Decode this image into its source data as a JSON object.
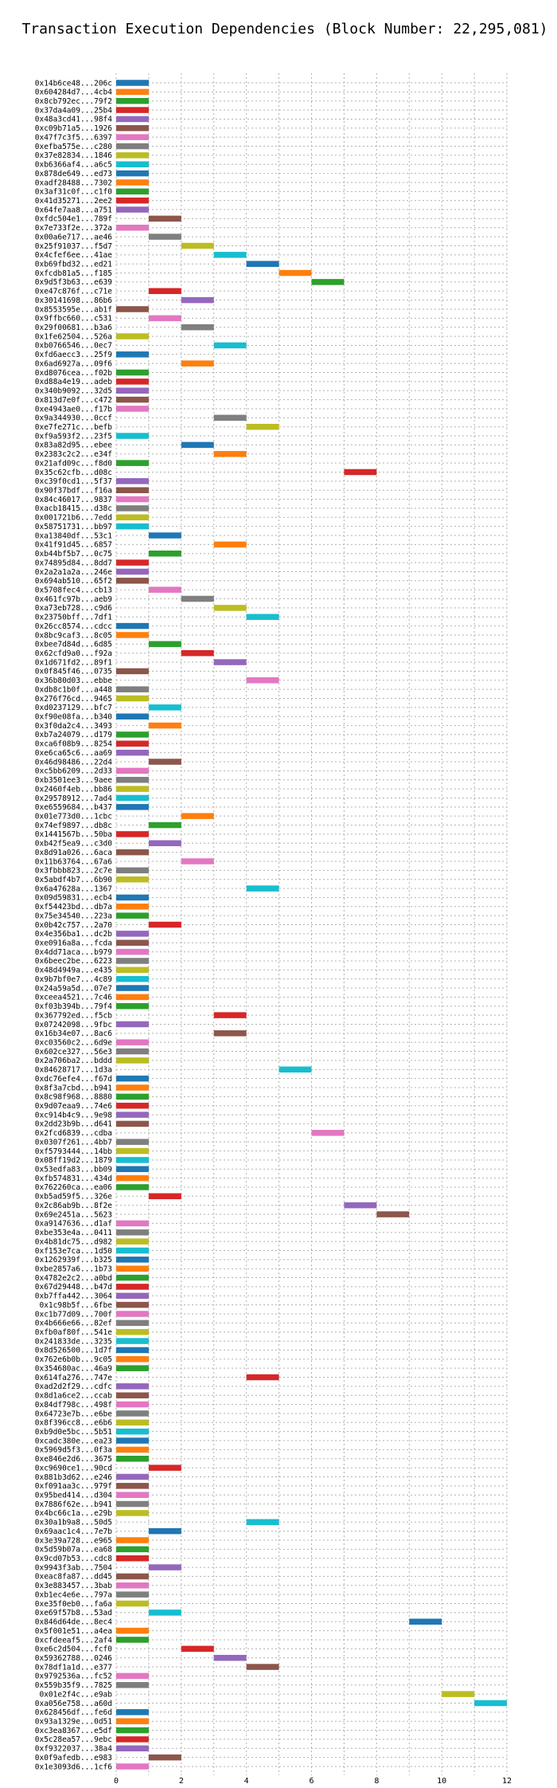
{
  "chart_data": {
    "type": "gantt",
    "title": "Transaction Execution Dependencies (Block Number: 22,295,081)",
    "xlabel": "",
    "ylabel": "",
    "xlim": [
      0,
      12
    ],
    "xticks": [
      0,
      2,
      4,
      6,
      8,
      10,
      12
    ],
    "grid": true,
    "colors": [
      "#1f77b4",
      "#ff7f0e",
      "#2ca02c",
      "#d62728",
      "#9467bd",
      "#8c564b",
      "#e377c2",
      "#7f7f7f",
      "#bcbd22",
      "#17becf"
    ],
    "rows": [
      {
        "label": "0x14b6ce48...206c",
        "start": 0,
        "end": 1
      },
      {
        "label": "0x604284d7...4cb4",
        "start": 0,
        "end": 1
      },
      {
        "label": "0x8cb792ec...79f2",
        "start": 0,
        "end": 1
      },
      {
        "label": "0x37da4a09...25b4",
        "start": 0,
        "end": 1
      },
      {
        "label": "0x48a3cd41...98f4",
        "start": 0,
        "end": 1
      },
      {
        "label": "0xc09b71a5...1926",
        "start": 0,
        "end": 1
      },
      {
        "label": "0x47f7c3f5...6397",
        "start": 0,
        "end": 1
      },
      {
        "label": "0xefba575e...c280",
        "start": 0,
        "end": 1
      },
      {
        "label": "0x37e82834...1846",
        "start": 0,
        "end": 1
      },
      {
        "label": "0xb6366af4...a6c5",
        "start": 0,
        "end": 1
      },
      {
        "label": "0x878de649...ed73",
        "start": 0,
        "end": 1
      },
      {
        "label": "0xadf28488...7302",
        "start": 0,
        "end": 1
      },
      {
        "label": "0x3af31c0f...c1f0",
        "start": 0,
        "end": 1
      },
      {
        "label": "0x41d35271...2ee2",
        "start": 0,
        "end": 1
      },
      {
        "label": "0x64fe7aa8...a751",
        "start": 0,
        "end": 1
      },
      {
        "label": "0xfdc504e1...789f",
        "start": 1,
        "end": 2
      },
      {
        "label": "0x7e733f2e...372a",
        "start": 0,
        "end": 1
      },
      {
        "label": "0x00a6e717...ae46",
        "start": 1,
        "end": 2
      },
      {
        "label": "0x25f91037...f5d7",
        "start": 2,
        "end": 3
      },
      {
        "label": "0x4cfef6ee...41ae",
        "start": 3,
        "end": 4
      },
      {
        "label": "0xb69fbd32...ed21",
        "start": 4,
        "end": 5
      },
      {
        "label": "0xfcdb81a5...f185",
        "start": 5,
        "end": 6
      },
      {
        "label": "0x9d5f3b63...e639",
        "start": 6,
        "end": 7
      },
      {
        "label": "0xe47c876f...c71e",
        "start": 1,
        "end": 2
      },
      {
        "label": "0x30141698...86b6",
        "start": 2,
        "end": 3
      },
      {
        "label": "0x8553595e...ab1f",
        "start": 0,
        "end": 1
      },
      {
        "label": "0x9ffbc660...c531",
        "start": 1,
        "end": 2
      },
      {
        "label": "0x29f00681...b3a6",
        "start": 2,
        "end": 3
      },
      {
        "label": "0x1fe62504...526a",
        "start": 0,
        "end": 1
      },
      {
        "label": "0xb0766546...0ec7",
        "start": 3,
        "end": 4
      },
      {
        "label": "0xfd6aecc3...25f9",
        "start": 0,
        "end": 1
      },
      {
        "label": "0x6ad6927a...09f6",
        "start": 2,
        "end": 3
      },
      {
        "label": "0xd8076cea...f02b",
        "start": 0,
        "end": 1
      },
      {
        "label": "0xd88a4e19...adeb",
        "start": 0,
        "end": 1
      },
      {
        "label": "0x340b9092...32d5",
        "start": 0,
        "end": 1
      },
      {
        "label": "0x813d7e0f...c472",
        "start": 0,
        "end": 1
      },
      {
        "label": "0xe4943ae0...f17b",
        "start": 0,
        "end": 1
      },
      {
        "label": "0x9a344930...0ccf",
        "start": 3,
        "end": 4
      },
      {
        "label": "0xe7fe271c...befb",
        "start": 4,
        "end": 5
      },
      {
        "label": "0xf9a593f2...23f5",
        "start": 0,
        "end": 1
      },
      {
        "label": "0x83a82d95...ebee",
        "start": 2,
        "end": 3
      },
      {
        "label": "0x2383c2c2...e34f",
        "start": 3,
        "end": 4
      },
      {
        "label": "0x21afd09c...f8d0",
        "start": 0,
        "end": 1
      },
      {
        "label": "0x35c62cfb...d08c",
        "start": 7,
        "end": 8
      },
      {
        "label": "0xc39f0cd1...5f37",
        "start": 0,
        "end": 1
      },
      {
        "label": "0x90f37bdf...f16a",
        "start": 0,
        "end": 1
      },
      {
        "label": "0x84c46017...9837",
        "start": 0,
        "end": 1
      },
      {
        "label": "0xacb18415...d38c",
        "start": 0,
        "end": 1
      },
      {
        "label": "0x001721b6...7edd",
        "start": 0,
        "end": 1
      },
      {
        "label": "0x58751731...bb97",
        "start": 0,
        "end": 1
      },
      {
        "label": "0xa13840df...53c1",
        "start": 1,
        "end": 2
      },
      {
        "label": "0x41f91d45...6857",
        "start": 3,
        "end": 4
      },
      {
        "label": "0xb44bf5b7...0c75",
        "start": 1,
        "end": 2
      },
      {
        "label": "0x74895d84...8dd7",
        "start": 0,
        "end": 1
      },
      {
        "label": "0x2a2a1a2a...246e",
        "start": 0,
        "end": 1
      },
      {
        "label": "0x694ab510...65f2",
        "start": 0,
        "end": 1
      },
      {
        "label": "0x5708fec4...cb13",
        "start": 1,
        "end": 2
      },
      {
        "label": "0x461fc97b...aeb9",
        "start": 2,
        "end": 3
      },
      {
        "label": "0xa73eb728...c9d6",
        "start": 3,
        "end": 4
      },
      {
        "label": "0x23750bff...7df1",
        "start": 4,
        "end": 5
      },
      {
        "label": "0x26cc8574...cdcc",
        "start": 0,
        "end": 1
      },
      {
        "label": "0x8bc9caf3...8c05",
        "start": 0,
        "end": 1
      },
      {
        "label": "0xbee7d84d...6d85",
        "start": 1,
        "end": 2
      },
      {
        "label": "0x62cfd9a0...f92a",
        "start": 2,
        "end": 3
      },
      {
        "label": "0x1d671fd2...89f1",
        "start": 3,
        "end": 4
      },
      {
        "label": "0x0f845f46...0735",
        "start": 0,
        "end": 1
      },
      {
        "label": "0x36b80d03...ebbe",
        "start": 4,
        "end": 5
      },
      {
        "label": "0xdb8c1b0f...a448",
        "start": 0,
        "end": 1
      },
      {
        "label": "0x276f76cd...9465",
        "start": 0,
        "end": 1
      },
      {
        "label": "0xd0237129...bfc7",
        "start": 1,
        "end": 2
      },
      {
        "label": "0xf90e08fa...b340",
        "start": 0,
        "end": 1
      },
      {
        "label": "0x3f0da2c4...3493",
        "start": 1,
        "end": 2
      },
      {
        "label": "0xb7a24079...d179",
        "start": 0,
        "end": 1
      },
      {
        "label": "0xca6f08b9...8254",
        "start": 0,
        "end": 1
      },
      {
        "label": "0xe6ca65c6...aa69",
        "start": 0,
        "end": 1
      },
      {
        "label": "0x46d98486...22d4",
        "start": 1,
        "end": 2
      },
      {
        "label": "0xc5bb6209...2d33",
        "start": 0,
        "end": 1
      },
      {
        "label": "0xb3501ee3...9aee",
        "start": 0,
        "end": 1
      },
      {
        "label": "0x2460f4eb...bb86",
        "start": 0,
        "end": 1
      },
      {
        "label": "0x29578912...7ad4",
        "start": 0,
        "end": 1
      },
      {
        "label": "0xe6559684...b437",
        "start": 0,
        "end": 1
      },
      {
        "label": "0x01e773d0...1cbc",
        "start": 2,
        "end": 3
      },
      {
        "label": "0x74ef9897...db8c",
        "start": 1,
        "end": 2
      },
      {
        "label": "0x1441567b...50ba",
        "start": 0,
        "end": 1
      },
      {
        "label": "0xb42f5ea9...c3d0",
        "start": 1,
        "end": 2
      },
      {
        "label": "0x8d91a026...6aca",
        "start": 0,
        "end": 1
      },
      {
        "label": "0x11b63764...67a6",
        "start": 2,
        "end": 3
      },
      {
        "label": "0x3fbbb823...2c7e",
        "start": 0,
        "end": 1
      },
      {
        "label": "0x5abdf4b7...6b90",
        "start": 0,
        "end": 1
      },
      {
        "label": "0x6a47628a...1367",
        "start": 4,
        "end": 5
      },
      {
        "label": "0x09d59831...ecb4",
        "start": 0,
        "end": 1
      },
      {
        "label": "0xf54423bd...db7a",
        "start": 0,
        "end": 1
      },
      {
        "label": "0x75e34540...223a",
        "start": 0,
        "end": 1
      },
      {
        "label": "0x0b42c757...2a70",
        "start": 1,
        "end": 2
      },
      {
        "label": "0x4e356ba1...dc2b",
        "start": 0,
        "end": 1
      },
      {
        "label": "0xe0916a8a...fcda",
        "start": 0,
        "end": 1
      },
      {
        "label": "0x4dd71aca...b979",
        "start": 0,
        "end": 1
      },
      {
        "label": "0x6beec2be...6223",
        "start": 0,
        "end": 1
      },
      {
        "label": "0x48d4949a...e435",
        "start": 0,
        "end": 1
      },
      {
        "label": "0x9b7bf0e7...4c89",
        "start": 0,
        "end": 1
      },
      {
        "label": "0x24a59a5d...07e7",
        "start": 0,
        "end": 1
      },
      {
        "label": "0xceea4521...7c46",
        "start": 0,
        "end": 1
      },
      {
        "label": "0xf03b394b...79f4",
        "start": 0,
        "end": 1
      },
      {
        "label": "0x367792ed...f5cb",
        "start": 3,
        "end": 4
      },
      {
        "label": "0x07242098...9fbc",
        "start": 0,
        "end": 1
      },
      {
        "label": "0x16b34e07...8ac6",
        "start": 3,
        "end": 4
      },
      {
        "label": "0xc03560c2...6d9e",
        "start": 0,
        "end": 1
      },
      {
        "label": "0x602ce327...56e3",
        "start": 0,
        "end": 1
      },
      {
        "label": "0x2a706ba2...bddd",
        "start": 0,
        "end": 1
      },
      {
        "label": "0x84628717...1d3a",
        "start": 5,
        "end": 6
      },
      {
        "label": "0xdc76efe4...f67d",
        "start": 0,
        "end": 1
      },
      {
        "label": "0x8f3a7cbd...b941",
        "start": 0,
        "end": 1
      },
      {
        "label": "0x8c98f968...8880",
        "start": 0,
        "end": 1
      },
      {
        "label": "0x9d07eaa9...74e6",
        "start": 0,
        "end": 1
      },
      {
        "label": "0xc914b4c9...9e98",
        "start": 0,
        "end": 1
      },
      {
        "label": "0x2dd23b9b...d641",
        "start": 0,
        "end": 1
      },
      {
        "label": "0x2fcd6839...cdba",
        "start": 6,
        "end": 7
      },
      {
        "label": "0x0307f261...4bb7",
        "start": 0,
        "end": 1
      },
      {
        "label": "0xf5793444...14bb",
        "start": 0,
        "end": 1
      },
      {
        "label": "0x08ff19d2...1879",
        "start": 0,
        "end": 1
      },
      {
        "label": "0x53edfa83...bb09",
        "start": 0,
        "end": 1
      },
      {
        "label": "0xfb574831...434d",
        "start": 0,
        "end": 1
      },
      {
        "label": "0x762260ca...ea06",
        "start": 0,
        "end": 1
      },
      {
        "label": "0xb5ad59f5...326e",
        "start": 1,
        "end": 2
      },
      {
        "label": "0x2c86ab9b...8f2e",
        "start": 7,
        "end": 8
      },
      {
        "label": "0x69e2451a...5623",
        "start": 8,
        "end": 9
      },
      {
        "label": "0xa9147636...d1af",
        "start": 0,
        "end": 1
      },
      {
        "label": "0xbe353e4a...0411",
        "start": 0,
        "end": 1
      },
      {
        "label": "0x4b81dc75...d982",
        "start": 0,
        "end": 1
      },
      {
        "label": "0xf153e7ca...1d50",
        "start": 0,
        "end": 1
      },
      {
        "label": "0x1262939f...b325",
        "start": 0,
        "end": 1
      },
      {
        "label": "0xbe2857a6...1b73",
        "start": 0,
        "end": 1
      },
      {
        "label": "0x4782e2c2...a0bd",
        "start": 0,
        "end": 1
      },
      {
        "label": "0x67d29448...b47d",
        "start": 0,
        "end": 1
      },
      {
        "label": "0xb7ffa442...3064",
        "start": 0,
        "end": 1
      },
      {
        "label": "0x1c98b5f...6fbe",
        "start": 0,
        "end": 1
      },
      {
        "label": "0xc1b77d09...700f",
        "start": 0,
        "end": 1
      },
      {
        "label": "0x4b666e66...82ef",
        "start": 0,
        "end": 1
      },
      {
        "label": "0xfb0af80f...541e",
        "start": 0,
        "end": 1
      },
      {
        "label": "0x241833de...3235",
        "start": 0,
        "end": 1
      },
      {
        "label": "0x8d526500...1d7f",
        "start": 0,
        "end": 1
      },
      {
        "label": "0x762e6b0b...9c05",
        "start": 0,
        "end": 1
      },
      {
        "label": "0x354680ac...46a9",
        "start": 0,
        "end": 1
      },
      {
        "label": "0x614fa276...747e",
        "start": 4,
        "end": 5
      },
      {
        "label": "0xad2d2f29...cdfc",
        "start": 0,
        "end": 1
      },
      {
        "label": "0x8d1a6ce2...ccab",
        "start": 0,
        "end": 1
      },
      {
        "label": "0x84df798c...498f",
        "start": 0,
        "end": 1
      },
      {
        "label": "0x64723e7b...e6be",
        "start": 0,
        "end": 1
      },
      {
        "label": "0x8f396cc8...e6b6",
        "start": 0,
        "end": 1
      },
      {
        "label": "0xb9d0e5bc...5b51",
        "start": 0,
        "end": 1
      },
      {
        "label": "0xcadc380e...ea23",
        "start": 0,
        "end": 1
      },
      {
        "label": "0x5969d5f3...0f3a",
        "start": 0,
        "end": 1
      },
      {
        "label": "0xe846e2d6...3675",
        "start": 0,
        "end": 1
      },
      {
        "label": "0xc9690ce1...90cd",
        "start": 1,
        "end": 2
      },
      {
        "label": "0x881b3d62...e246",
        "start": 0,
        "end": 1
      },
      {
        "label": "0xf091aa3c...979f",
        "start": 0,
        "end": 1
      },
      {
        "label": "0x95bed414...d304",
        "start": 0,
        "end": 1
      },
      {
        "label": "0x7886f62e...b941",
        "start": 0,
        "end": 1
      },
      {
        "label": "0x4bc66c1a...e29b",
        "start": 0,
        "end": 1
      },
      {
        "label": "0x30a1b9a8...50d5",
        "start": 4,
        "end": 5
      },
      {
        "label": "0x69aac1c4...7e7b",
        "start": 1,
        "end": 2
      },
      {
        "label": "0x3e39a728...e965",
        "start": 0,
        "end": 1
      },
      {
        "label": "0x5d59b07a...ea68",
        "start": 0,
        "end": 1
      },
      {
        "label": "0x9cd07b53...cdc8",
        "start": 0,
        "end": 1
      },
      {
        "label": "0x9943f3ab...7504",
        "start": 1,
        "end": 2
      },
      {
        "label": "0xeac8fa87...dd45",
        "start": 0,
        "end": 1
      },
      {
        "label": "0x3e883457...3bab",
        "start": 0,
        "end": 1
      },
      {
        "label": "0xb1ec4e6e...797a",
        "start": 0,
        "end": 1
      },
      {
        "label": "0xe35f0eb0...fa6a",
        "start": 0,
        "end": 1
      },
      {
        "label": "0xe69f57b8...53ad",
        "start": 1,
        "end": 2
      },
      {
        "label": "0x846d64de...8ec4",
        "start": 9,
        "end": 10
      },
      {
        "label": "0x5f001e51...a4ea",
        "start": 0,
        "end": 1
      },
      {
        "label": "0xcfdeeaf5...2af4",
        "start": 0,
        "end": 1
      },
      {
        "label": "0xe6c2d504...fcf0",
        "start": 2,
        "end": 3
      },
      {
        "label": "0x59362788...0246",
        "start": 3,
        "end": 4
      },
      {
        "label": "0x78df1a1d...e377",
        "start": 4,
        "end": 5
      },
      {
        "label": "0x9792536a...fc52",
        "start": 0,
        "end": 1
      },
      {
        "label": "0x559b35f9...7825",
        "start": 0,
        "end": 1
      },
      {
        "label": "0x01e2f4c...e9ab",
        "start": 10,
        "end": 11
      },
      {
        "label": "0xa056e758...a60d",
        "start": 11,
        "end": 12
      },
      {
        "label": "0x628456df...fe6d",
        "start": 0,
        "end": 1
      },
      {
        "label": "0x93a1329e...0d51",
        "start": 0,
        "end": 1
      },
      {
        "label": "0xc3ea8367...e5df",
        "start": 0,
        "end": 1
      },
      {
        "label": "0x5c28ea57...9ebc",
        "start": 0,
        "end": 1
      },
      {
        "label": "0xf9322037...38a4",
        "start": 0,
        "end": 1
      },
      {
        "label": "0x0f9afedb...e983",
        "start": 1,
        "end": 2
      },
      {
        "label": "0x1e3093d6...1cf6",
        "start": 0,
        "end": 1
      }
    ]
  }
}
